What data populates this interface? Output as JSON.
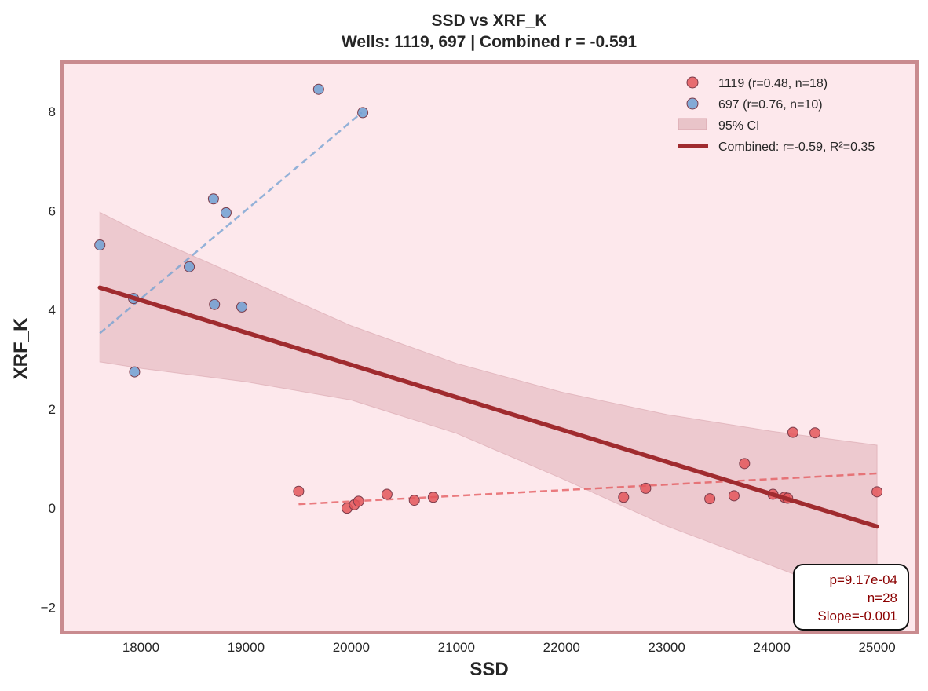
{
  "chart_data": {
    "type": "scatter",
    "title": "SSD vs XRF_K",
    "subtitle": "Wells: 1119, 697 | Combined r = -0.591",
    "xlabel": "SSD",
    "ylabel": "XRF_K",
    "xlim": [
      17250,
      25380
    ],
    "ylim": [
      -2.5,
      9.0
    ],
    "xticks": [
      18000,
      19000,
      20000,
      21000,
      22000,
      23000,
      24000,
      25000
    ],
    "yticks": [
      -2,
      0,
      2,
      4,
      6,
      8
    ],
    "ytick_labels": [
      "−2",
      "0",
      "2",
      "4",
      "6",
      "8"
    ],
    "grid": false,
    "legend_position": "top-right",
    "background_color": "#fde8ec",
    "frame_color": "#c98b8f",
    "series": [
      {
        "name": "1119 (r=0.48, n=18)",
        "color": "#e3565a",
        "fit_line": {
          "x": [
            19500,
            25000
          ],
          "y": [
            0.08,
            0.7
          ]
        },
        "points": [
          {
            "x": 19500,
            "y": 0.34
          },
          {
            "x": 19960,
            "y": 0.0
          },
          {
            "x": 20030,
            "y": 0.07
          },
          {
            "x": 20070,
            "y": 0.14
          },
          {
            "x": 20340,
            "y": 0.28
          },
          {
            "x": 20600,
            "y": 0.16
          },
          {
            "x": 20780,
            "y": 0.22
          },
          {
            "x": 22590,
            "y": 0.22
          },
          {
            "x": 22800,
            "y": 0.4
          },
          {
            "x": 23410,
            "y": 0.19
          },
          {
            "x": 23640,
            "y": 0.25
          },
          {
            "x": 23740,
            "y": 0.9
          },
          {
            "x": 24010,
            "y": 0.28
          },
          {
            "x": 24120,
            "y": 0.22
          },
          {
            "x": 24150,
            "y": 0.2
          },
          {
            "x": 24200,
            "y": 1.53
          },
          {
            "x": 24410,
            "y": 1.52
          },
          {
            "x": 25000,
            "y": 0.33
          }
        ]
      },
      {
        "name": "697 (r=0.76, n=10)",
        "color": "#6f9fd2",
        "fit_line": {
          "x": [
            17610,
            20100
          ],
          "y": [
            3.53,
            7.98
          ]
        },
        "points": [
          {
            "x": 17610,
            "y": 5.31
          },
          {
            "x": 17930,
            "y": 4.23
          },
          {
            "x": 17940,
            "y": 2.75
          },
          {
            "x": 18460,
            "y": 4.87
          },
          {
            "x": 18690,
            "y": 6.24
          },
          {
            "x": 18700,
            "y": 4.11
          },
          {
            "x": 18810,
            "y": 5.96
          },
          {
            "x": 18960,
            "y": 4.06
          },
          {
            "x": 19690,
            "y": 8.45
          },
          {
            "x": 20110,
            "y": 7.98
          }
        ]
      }
    ],
    "combined_fit": {
      "name": "Combined: r=-0.59, R²=0.35",
      "color": "#a02b2f",
      "x": [
        17610,
        25000
      ],
      "y": [
        4.45,
        -0.37
      ]
    },
    "confidence_band": {
      "name": "95% CI",
      "color": "#d9a5ad",
      "x": [
        17610,
        18000,
        19000,
        20000,
        21000,
        22000,
        23000,
        24000,
        25000
      ],
      "upper": [
        5.97,
        5.55,
        4.62,
        3.68,
        2.92,
        2.34,
        1.89,
        1.55,
        1.27
      ],
      "lower": [
        2.95,
        2.82,
        2.55,
        2.18,
        1.51,
        0.6,
        -0.36,
        -1.16,
        -1.98
      ]
    },
    "annotation": {
      "lines": [
        "p=9.17e-04",
        "n=28",
        "Slope=-0.001"
      ],
      "position": "bottom-right"
    }
  }
}
